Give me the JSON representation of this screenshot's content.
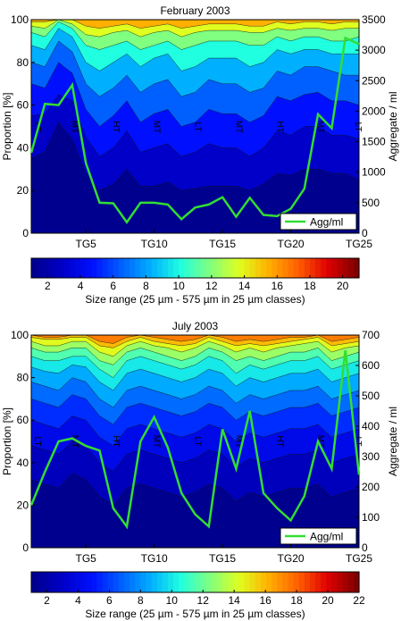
{
  "colors": {
    "agg_line": "#33dd33",
    "tide_label": "#ff33ff",
    "colormap": [
      "#00008f",
      "#0000c8",
      "#0010ff",
      "#0060ff",
      "#00b0ff",
      "#20ffdf",
      "#80ff80",
      "#dfff20",
      "#ffb000",
      "#ff6000",
      "#e00000",
      "#800000"
    ]
  },
  "chart_data": [
    {
      "type": "area",
      "title": "February 2003",
      "ylabel": "Proportion [%]",
      "y2label": "Aggregate / ml",
      "ylim": [
        0,
        100
      ],
      "y2lim": [
        0,
        3500
      ],
      "yticks": [
        0,
        20,
        40,
        60,
        80,
        100
      ],
      "y2ticks": [
        0,
        500,
        1000,
        1500,
        2000,
        2500,
        3000,
        3500
      ],
      "xlim": [
        1,
        25
      ],
      "xticks": [
        5,
        10,
        15,
        20,
        25
      ],
      "xticklabels": [
        "TG5",
        "TG10",
        "TG15",
        "TG20",
        "TG25"
      ],
      "grid": false,
      "legend": {
        "label": "Agg/ml",
        "position": "bottom-right"
      },
      "tide_labels": [
        {
          "x": 1,
          "label": "LT"
        },
        {
          "x": 4,
          "label": "MT"
        },
        {
          "x": 7,
          "label": "HT"
        },
        {
          "x": 10,
          "label": "MT"
        },
        {
          "x": 13,
          "label": "LT"
        },
        {
          "x": 16,
          "label": "MT"
        },
        {
          "x": 19,
          "label": "HT"
        },
        {
          "x": 22,
          "label": "MT"
        },
        {
          "x": 25,
          "label": "LT"
        }
      ],
      "boundaries": [
        [
          35,
          38,
          52,
          44,
          28,
          20,
          23,
          30,
          22,
          22,
          24,
          20,
          21,
          22,
          22,
          22,
          20,
          23,
          28,
          27,
          30,
          30,
          28,
          28,
          25
        ],
        [
          55,
          56,
          65,
          62,
          45,
          36,
          40,
          48,
          38,
          40,
          42,
          36,
          38,
          42,
          40,
          40,
          36,
          40,
          48,
          46,
          50,
          50,
          46,
          46,
          44
        ],
        [
          70,
          68,
          80,
          75,
          58,
          50,
          55,
          62,
          52,
          56,
          58,
          50,
          52,
          58,
          56,
          56,
          52,
          55,
          64,
          62,
          65,
          66,
          62,
          62,
          60
        ],
        [
          80,
          78,
          90,
          85,
          70,
          64,
          68,
          74,
          66,
          70,
          72,
          64,
          66,
          72,
          70,
          70,
          66,
          68,
          76,
          74,
          78,
          78,
          76,
          74,
          74
        ],
        [
          88,
          86,
          96,
          92,
          80,
          76,
          80,
          84,
          78,
          82,
          84,
          76,
          78,
          82,
          82,
          82,
          78,
          80,
          86,
          84,
          86,
          86,
          84,
          84,
          84
        ],
        [
          94,
          92,
          99,
          96,
          88,
          86,
          88,
          90,
          86,
          88,
          90,
          86,
          88,
          90,
          90,
          90,
          88,
          88,
          92,
          90,
          92,
          92,
          90,
          90,
          92
        ],
        [
          97,
          96,
          100,
          98,
          93,
          92,
          94,
          95,
          92,
          94,
          95,
          92,
          94,
          95,
          95,
          95,
          94,
          94,
          96,
          95,
          96,
          96,
          95,
          96,
          96
        ],
        [
          99,
          99,
          100,
          100,
          97,
          96,
          97,
          98,
          96,
          97,
          98,
          96,
          97,
          98,
          98,
          98,
          97,
          97,
          99,
          98,
          99,
          99,
          98,
          99,
          99
        ]
      ],
      "agg_x": [
        1,
        2,
        3,
        4,
        5,
        6,
        7,
        8,
        9,
        10,
        11,
        12,
        13,
        14,
        15,
        16,
        17,
        18,
        19,
        20,
        21,
        22,
        23,
        24,
        25
      ],
      "agg_values": [
        1320,
        2120,
        2100,
        2430,
        1150,
        500,
        490,
        180,
        500,
        500,
        470,
        230,
        420,
        470,
        590,
        270,
        580,
        300,
        280,
        400,
        730,
        1950,
        1720,
        3200,
        3100
      ],
      "colorbar": {
        "min": 1,
        "max": 21,
        "ticks": [
          2,
          4,
          6,
          8,
          10,
          12,
          14,
          16,
          18,
          20
        ],
        "label": "Size range (25 µm - 575 µm in 25 µm classes)"
      }
    },
    {
      "type": "area",
      "title": "July 2003",
      "ylabel": "Proportion [%]",
      "y2label": "Aggregate / ml",
      "ylim": [
        0,
        100
      ],
      "y2lim": [
        0,
        700
      ],
      "yticks": [
        0,
        20,
        40,
        60,
        80,
        100
      ],
      "y2ticks": [
        0,
        100,
        200,
        300,
        400,
        500,
        600,
        700
      ],
      "xlim": [
        1,
        25
      ],
      "xticks": [
        5,
        10,
        15,
        20,
        25
      ],
      "xticklabels": [
        "TG5",
        "TG10",
        "TG15",
        "TG20",
        "TG25"
      ],
      "grid": false,
      "legend": {
        "label": "Agg/ml",
        "position": "bottom-right"
      },
      "tide_labels": [
        {
          "x": 1,
          "label": "LT"
        },
        {
          "x": 4,
          "label": "MT"
        },
        {
          "x": 7,
          "label": "HT"
        },
        {
          "x": 10,
          "label": "MT"
        },
        {
          "x": 13,
          "label": "LT"
        },
        {
          "x": 16,
          "label": "MT"
        },
        {
          "x": 19,
          "label": "HT"
        },
        {
          "x": 22,
          "label": "MT"
        },
        {
          "x": 25,
          "label": "LT"
        }
      ],
      "boundaries": [
        [
          32,
          30,
          28,
          35,
          32,
          24,
          20,
          28,
          30,
          28,
          26,
          24,
          26,
          30,
          28,
          22,
          26,
          24,
          26,
          28,
          28,
          30,
          24,
          26,
          28
        ],
        [
          48,
          46,
          44,
          50,
          48,
          40,
          36,
          44,
          46,
          44,
          42,
          40,
          42,
          46,
          44,
          38,
          42,
          40,
          42,
          44,
          44,
          46,
          40,
          42,
          44
        ],
        [
          60,
          58,
          56,
          62,
          60,
          52,
          48,
          56,
          58,
          56,
          54,
          52,
          54,
          58,
          56,
          50,
          54,
          52,
          54,
          56,
          56,
          58,
          52,
          54,
          56
        ],
        [
          70,
          68,
          66,
          72,
          70,
          62,
          58,
          66,
          68,
          66,
          64,
          62,
          64,
          68,
          66,
          60,
          64,
          62,
          64,
          66,
          66,
          68,
          62,
          64,
          66
        ],
        [
          78,
          76,
          74,
          80,
          78,
          70,
          66,
          74,
          76,
          74,
          72,
          70,
          72,
          76,
          74,
          68,
          72,
          70,
          72,
          74,
          74,
          76,
          70,
          72,
          74
        ],
        [
          85,
          83,
          82,
          86,
          85,
          78,
          74,
          82,
          84,
          82,
          80,
          78,
          80,
          84,
          82,
          76,
          80,
          78,
          80,
          82,
          82,
          84,
          78,
          80,
          82
        ],
        [
          90,
          88,
          88,
          90,
          90,
          84,
          80,
          88,
          90,
          88,
          86,
          84,
          86,
          90,
          88,
          82,
          86,
          84,
          86,
          88,
          88,
          90,
          84,
          86,
          88
        ],
        [
          94,
          92,
          92,
          94,
          94,
          88,
          86,
          92,
          94,
          92,
          90,
          88,
          90,
          94,
          92,
          88,
          90,
          88,
          90,
          92,
          92,
          94,
          88,
          90,
          92
        ],
        [
          97,
          95,
          95,
          97,
          97,
          92,
          90,
          95,
          97,
          95,
          94,
          92,
          94,
          97,
          95,
          92,
          94,
          92,
          94,
          95,
          96,
          97,
          92,
          94,
          95
        ],
        [
          99,
          98,
          98,
          99,
          99,
          95,
          94,
          97,
          99,
          97,
          96,
          95,
          96,
          99,
          97,
          95,
          96,
          95,
          96,
          97,
          98,
          99,
          95,
          96,
          97
        ],
        [
          100,
          99,
          99,
          100,
          100,
          97,
          96,
          99,
          100,
          99,
          98,
          97,
          98,
          100,
          99,
          97,
          98,
          97,
          98,
          99,
          99,
          100,
          97,
          98,
          99
        ]
      ],
      "agg_x": [
        1,
        2,
        3,
        4,
        5,
        6,
        7,
        8,
        9,
        10,
        11,
        12,
        13,
        14,
        15,
        16,
        17,
        18,
        19,
        20,
        21,
        22,
        23,
        24,
        25
      ],
      "agg_values": [
        140,
        250,
        350,
        360,
        335,
        320,
        130,
        70,
        350,
        430,
        330,
        180,
        110,
        70,
        390,
        260,
        450,
        180,
        130,
        90,
        170,
        350,
        260,
        650,
        240
      ],
      "colorbar": {
        "min": 1,
        "max": 22,
        "ticks": [
          2,
          4,
          6,
          8,
          10,
          12,
          14,
          16,
          18,
          20,
          22
        ],
        "label": "Size range (25 µm - 575 µm in 25 µm classes)"
      }
    }
  ]
}
